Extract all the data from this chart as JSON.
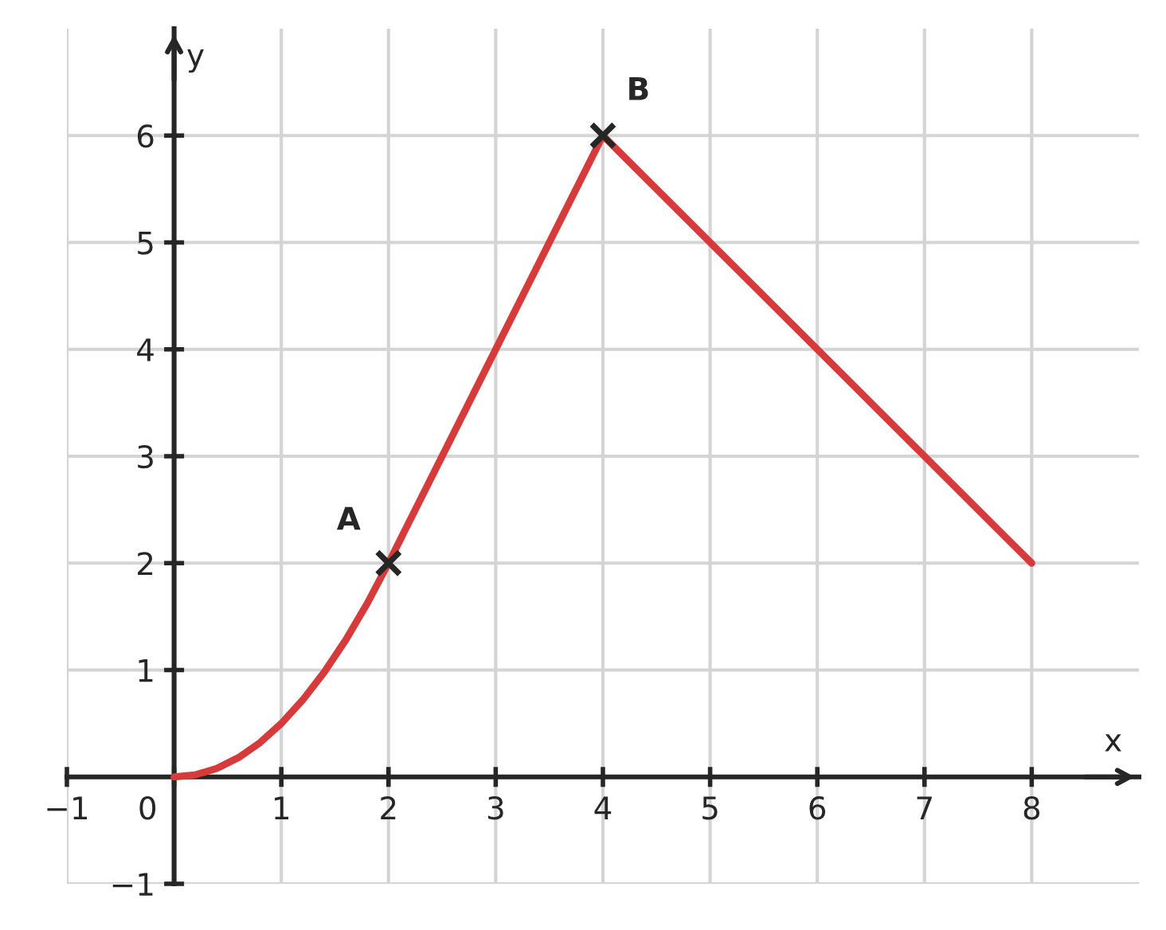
{
  "chart_data": {
    "type": "line",
    "xlabel": "x",
    "ylabel": "y",
    "xlim": [
      -1,
      9
    ],
    "ylim": [
      -1,
      7
    ],
    "xticks": [
      -1,
      0,
      1,
      2,
      3,
      4,
      5,
      6,
      7,
      8
    ],
    "yticks": [
      -1,
      1,
      2,
      3,
      4,
      5,
      6
    ],
    "grid": true,
    "line_style": "solid",
    "series": [
      {
        "color": "#d63a3a",
        "x": [
          0,
          0.2,
          0.4,
          0.6,
          0.8,
          1,
          1.2,
          1.4,
          1.6,
          1.8,
          2,
          4,
          8
        ],
        "values": [
          0,
          0.02,
          0.08,
          0.18,
          0.32,
          0.5,
          0.72,
          0.98,
          1.28,
          1.62,
          2,
          6,
          2
        ]
      },
      {
        "type": "scatter",
        "color": "#262626",
        "marker": "cross",
        "x": [
          2,
          4
        ],
        "values": [
          2,
          6
        ]
      }
    ],
    "annotations": [
      {
        "text": "A",
        "x": 2,
        "y": 2
      },
      {
        "text": "B",
        "x": 4,
        "y": 6
      }
    ]
  }
}
